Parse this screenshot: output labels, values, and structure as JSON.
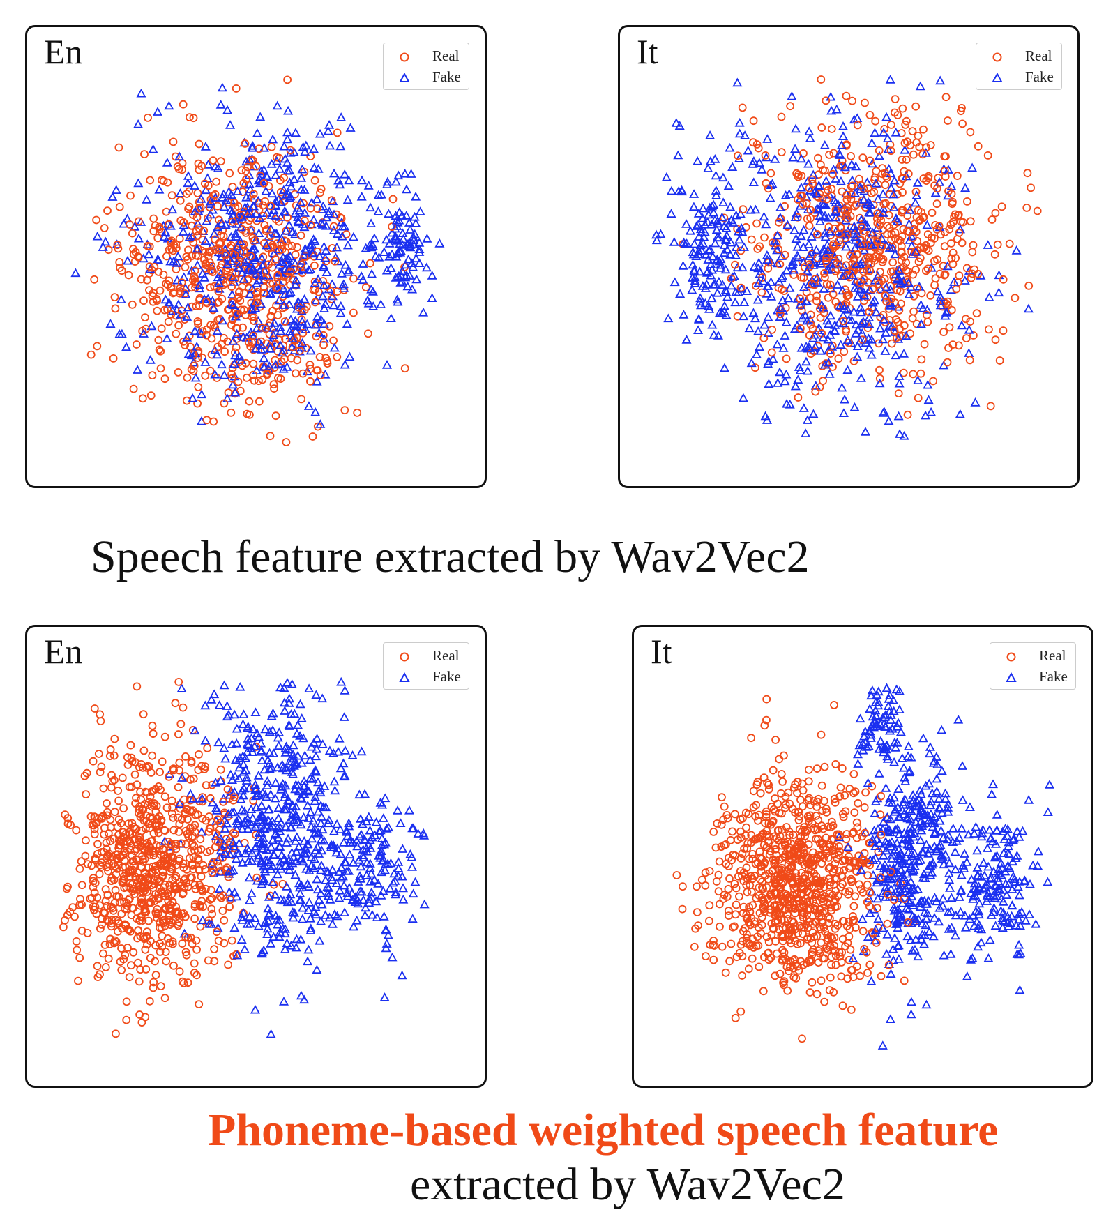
{
  "colors": {
    "real": "#f04a18",
    "fake": "#1a2ff0"
  },
  "captions": {
    "top": "Speech feature extracted by Wav2Vec2",
    "bottom_highlight": "Phoneme-based weighted speech feature",
    "bottom_rest": "extracted by Wav2Vec2"
  },
  "chart_data": [
    {
      "type": "scatter",
      "label": "En",
      "grid": false,
      "legend": "top-right",
      "legend_entries": [
        {
          "name": "Real",
          "marker": "circle"
        },
        {
          "name": "Fake",
          "marker": "triangle"
        }
      ],
      "distribution": "Real and Fake points fully intermixed in one large cluster",
      "series": [
        {
          "name": "Real",
          "clusters": [
            {
              "cx": 0.45,
              "cy": 0.55,
              "sx": 0.14,
              "sy": 0.17,
              "n": 620
            }
          ]
        },
        {
          "name": "Fake",
          "clusters": [
            {
              "cx": 0.52,
              "cy": 0.5,
              "sx": 0.15,
              "sy": 0.17,
              "n": 560
            },
            {
              "cx": 0.86,
              "cy": 0.48,
              "sx": 0.04,
              "sy": 0.08,
              "n": 90
            }
          ]
        }
      ]
    },
    {
      "type": "scatter",
      "label": "It",
      "grid": false,
      "legend": "top-right",
      "legend_entries": [
        {
          "name": "Real",
          "marker": "circle"
        },
        {
          "name": "Fake",
          "marker": "triangle"
        }
      ],
      "distribution": "Real and Fake points intermixed, Fake denser on the left edge",
      "series": [
        {
          "name": "Real",
          "clusters": [
            {
              "cx": 0.56,
              "cy": 0.47,
              "sx": 0.16,
              "sy": 0.16,
              "n": 600
            }
          ]
        },
        {
          "name": "Fake",
          "clusters": [
            {
              "cx": 0.46,
              "cy": 0.52,
              "sx": 0.17,
              "sy": 0.18,
              "n": 560
            },
            {
              "cx": 0.14,
              "cy": 0.48,
              "sx": 0.05,
              "sy": 0.1,
              "n": 120
            }
          ]
        }
      ]
    },
    {
      "type": "scatter",
      "label": "En",
      "grid": false,
      "legend": "top-right",
      "legend_entries": [
        {
          "name": "Real",
          "marker": "circle"
        },
        {
          "name": "Fake",
          "marker": "triangle"
        }
      ],
      "distribution": "Real points cluster on the left, Fake points on the right, partial overlap in the middle",
      "series": [
        {
          "name": "Real",
          "clusters": [
            {
              "cx": 0.24,
              "cy": 0.52,
              "sx": 0.1,
              "sy": 0.14,
              "n": 820
            }
          ]
        },
        {
          "name": "Fake",
          "clusters": [
            {
              "cx": 0.55,
              "cy": 0.42,
              "sx": 0.09,
              "sy": 0.17,
              "n": 520
            },
            {
              "cx": 0.77,
              "cy": 0.52,
              "sx": 0.07,
              "sy": 0.1,
              "n": 180
            }
          ]
        }
      ]
    },
    {
      "type": "scatter",
      "label": "It",
      "grid": false,
      "legend": "top-right",
      "legend_entries": [
        {
          "name": "Real",
          "marker": "circle"
        },
        {
          "name": "Fake",
          "marker": "triangle"
        }
      ],
      "distribution": "Real points form a dense left cluster, Fake points form separate clusters on the right",
      "series": [
        {
          "name": "Real",
          "clusters": [
            {
              "cx": 0.33,
              "cy": 0.57,
              "sx": 0.1,
              "sy": 0.13,
              "n": 880
            }
          ]
        },
        {
          "name": "Fake",
          "clusters": [
            {
              "cx": 0.62,
              "cy": 0.5,
              "sx": 0.06,
              "sy": 0.14,
              "n": 380
            },
            {
              "cx": 0.83,
              "cy": 0.58,
              "sx": 0.05,
              "sy": 0.09,
              "n": 180
            },
            {
              "cx": 0.55,
              "cy": 0.16,
              "sx": 0.03,
              "sy": 0.05,
              "n": 70
            }
          ]
        }
      ]
    }
  ]
}
